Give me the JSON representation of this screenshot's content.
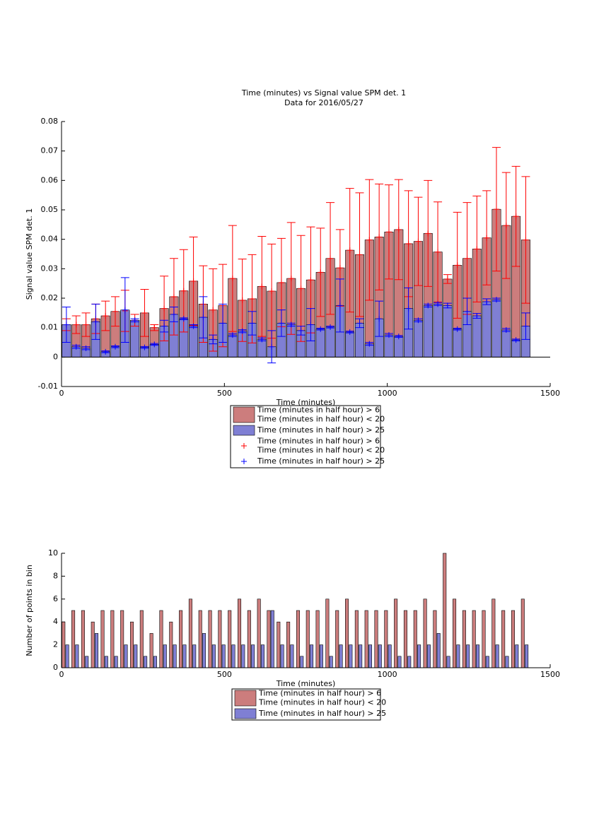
{
  "chart_data": [
    {
      "type": "bar_error",
      "title": "Time (minutes) vs Signal value SPM det. 1",
      "subtitle": "Data for 2016/05/27",
      "xlabel": "Time (minutes)",
      "ylabel": "Signal value SPM det. 1",
      "x": [
        15,
        45,
        75,
        105,
        135,
        165,
        195,
        225,
        255,
        285,
        315,
        345,
        375,
        405,
        435,
        465,
        495,
        525,
        555,
        585,
        615,
        645,
        675,
        705,
        735,
        765,
        795,
        825,
        855,
        885,
        915,
        945,
        975,
        1005,
        1035,
        1065,
        1095,
        1125,
        1155,
        1185,
        1215,
        1245,
        1275,
        1305,
        1335,
        1365,
        1395,
        1425
      ],
      "xlim": [
        0,
        1500
      ],
      "xticks": [
        0,
        500,
        1000,
        1500
      ],
      "ylim": [
        -0.01,
        0.08
      ],
      "yticks": [
        -0.01,
        0,
        0.01,
        0.02,
        0.03,
        0.04,
        0.05,
        0.06,
        0.07,
        0.08
      ],
      "series": [
        {
          "name": "Time (minutes in half hour) > 6\nTime (minutes in half hour) < 20",
          "color": "#cc7d7d",
          "error_color": "#ff0000",
          "values": [
            0.011,
            0.011,
            0.011,
            0.013,
            0.014,
            0.0155,
            0.0157,
            0.0125,
            0.015,
            0.01,
            0.0165,
            0.0205,
            0.0225,
            0.0258,
            0.018,
            0.016,
            0.0175,
            0.0267,
            0.0193,
            0.0198,
            0.024,
            0.0224,
            0.0253,
            0.0267,
            0.0233,
            0.0262,
            0.0288,
            0.0335,
            0.0303,
            0.0363,
            0.0348,
            0.0398,
            0.0408,
            0.0425,
            0.0433,
            0.0385,
            0.0393,
            0.042,
            0.0357,
            0.0265,
            0.0312,
            0.0335,
            0.0367,
            0.0405,
            0.0502,
            0.0447,
            0.0478,
            0.0398
          ],
          "errors": [
            0.002,
            0.003,
            0.004,
            0.005,
            0.005,
            0.005,
            0.007,
            0.002,
            0.008,
            0.001,
            0.011,
            0.013,
            0.014,
            0.015,
            0.013,
            0.014,
            0.014,
            0.018,
            0.014,
            0.015,
            0.017,
            0.016,
            0.015,
            0.019,
            0.018,
            0.018,
            0.015,
            0.019,
            0.013,
            0.021,
            0.021,
            0.0205,
            0.018,
            0.016,
            0.017,
            0.018,
            0.015,
            0.018,
            0.017,
            0.0015,
            0.018,
            0.019,
            0.018,
            0.016,
            0.021,
            0.018,
            0.017,
            0.0215
          ]
        },
        {
          "name": "Time (minutes in half hour) > 25",
          "color": "#7f7fd4",
          "error_color": "#0000ff",
          "values": [
            0.011,
            0.0035,
            0.003,
            0.012,
            0.0018,
            0.0035,
            0.016,
            0.0125,
            0.0033,
            0.0043,
            0.0105,
            0.0145,
            0.013,
            0.0105,
            0.0135,
            0.006,
            0.0115,
            0.0075,
            0.0088,
            0.0115,
            0.006,
            0.0035,
            0.0115,
            0.011,
            0.009,
            0.011,
            0.0095,
            0.0102,
            0.0175,
            0.0085,
            0.0115,
            0.0045,
            0.013,
            0.0075,
            0.007,
            0.0165,
            0.0125,
            0.0175,
            0.018,
            0.0175,
            0.0095,
            0.0155,
            0.014,
            0.0188,
            0.0195,
            0.0092,
            0.0058,
            0.0105
          ],
          "errors": [
            0.006,
            0.0005,
            0.0005,
            0.006,
            0.0003,
            0.0003,
            0.011,
            0.0005,
            0.0003,
            0.0003,
            0.002,
            0.0025,
            0.0003,
            0.0005,
            0.007,
            0.0015,
            0.0065,
            0.0005,
            0.0005,
            0.004,
            0.0005,
            0.0055,
            0.0045,
            0.0005,
            0.0015,
            0.0055,
            0.0003,
            0.0003,
            0.009,
            0.0003,
            0.0015,
            0.0005,
            0.006,
            0.0005,
            0.0003,
            0.007,
            0.0005,
            0.0005,
            0.0005,
            0.0008,
            0.0003,
            0.0045,
            0.0008,
            0.001,
            0.0005,
            0.0005,
            0.0003,
            0.0045
          ]
        }
      ]
    },
    {
      "type": "grouped_bar",
      "xlabel": "Time (minutes)",
      "ylabel": "Number of points in bin",
      "x": [
        15,
        45,
        75,
        105,
        135,
        165,
        195,
        225,
        255,
        285,
        315,
        345,
        375,
        405,
        435,
        465,
        495,
        525,
        555,
        585,
        615,
        645,
        675,
        705,
        735,
        765,
        795,
        825,
        855,
        885,
        915,
        945,
        975,
        1005,
        1035,
        1065,
        1095,
        1125,
        1155,
        1185,
        1215,
        1245,
        1275,
        1305,
        1335,
        1365,
        1395,
        1425
      ],
      "xlim": [
        0,
        1500
      ],
      "xticks": [
        0,
        500,
        1000,
        1500
      ],
      "ylim": [
        0,
        10
      ],
      "yticks": [
        0,
        2,
        4,
        6,
        8,
        10
      ],
      "series": [
        {
          "name": "Time (minutes in half hour) > 6\nTime (minutes in half hour) < 20",
          "color": "#cc7d7d",
          "values": [
            4,
            5,
            5,
            4,
            5,
            5,
            5,
            4,
            5,
            3,
            5,
            4,
            5,
            6,
            5,
            5,
            5,
            5,
            6,
            5,
            6,
            5,
            4,
            4,
            5,
            5,
            5,
            6,
            5,
            6,
            5,
            5,
            5,
            5,
            6,
            5,
            5,
            6,
            5,
            10,
            6,
            5,
            5,
            5,
            6,
            5,
            5,
            6
          ]
        },
        {
          "name": "Time (minutes in half hour) > 25",
          "color": "#7f7fd4",
          "values": [
            2,
            2,
            1,
            3,
            1,
            1,
            2,
            2,
            1,
            1,
            2,
            2,
            2,
            2,
            3,
            2,
            2,
            2,
            2,
            2,
            2,
            5,
            2,
            2,
            1,
            2,
            2,
            1,
            2,
            2,
            2,
            2,
            2,
            2,
            1,
            1,
            2,
            2,
            3,
            1,
            2,
            2,
            2,
            1,
            2,
            1,
            2,
            2
          ]
        }
      ]
    }
  ]
}
